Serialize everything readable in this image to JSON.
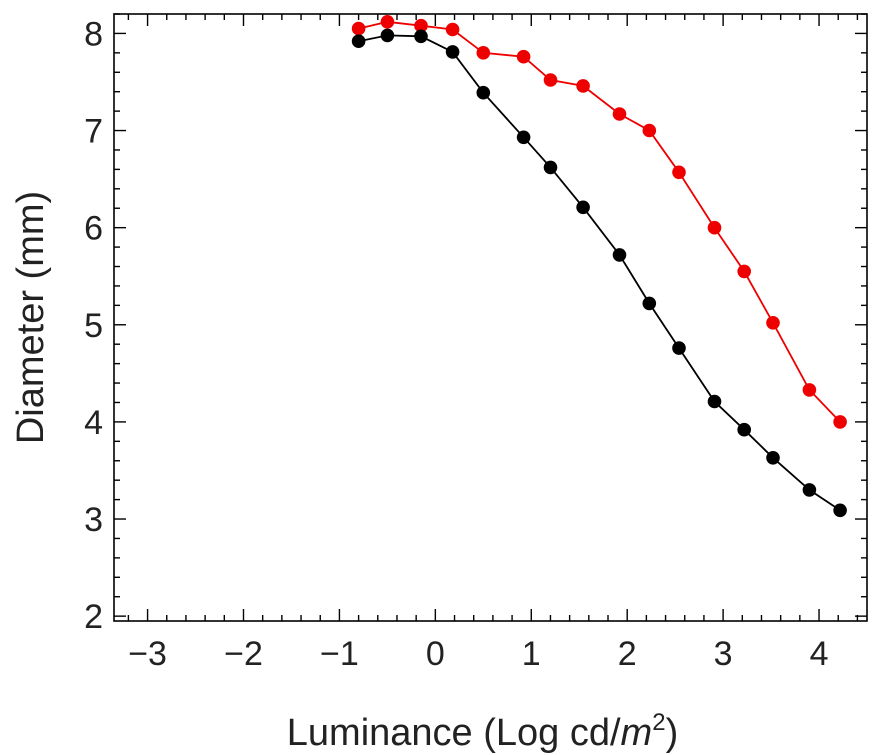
{
  "chart_data": {
    "type": "line",
    "title": "",
    "xlabel_parts": {
      "prefix": "Luminance (Log cd/",
      "italic": "m",
      "superscript": "2",
      "suffix": ")"
    },
    "ylabel": "Diameter (mm)",
    "xlim": [
      -3.35,
      4.5
    ],
    "ylim": [
      1.95,
      8.2
    ],
    "xticks": [
      -3,
      -2,
      -1,
      0,
      1,
      2,
      3,
      4
    ],
    "xtick_labels": [
      "−3",
      "−2",
      "−1",
      "0",
      "1",
      "2",
      "3",
      "4"
    ],
    "yticks": [
      2,
      3,
      4,
      5,
      6,
      7,
      8
    ],
    "ytick_labels": [
      "2",
      "3",
      "4",
      "5",
      "6",
      "7",
      "8"
    ],
    "grid": false,
    "legend": "none",
    "series": [
      {
        "color": "#ee0000",
        "x": [
          -0.8,
          -0.5,
          -0.15,
          0.18,
          0.5,
          0.92,
          1.2,
          1.54,
          1.92,
          2.23,
          2.54,
          2.91,
          3.22,
          3.52,
          3.9,
          4.22
        ],
        "y": [
          8.05,
          8.12,
          8.08,
          8.04,
          7.8,
          7.76,
          7.52,
          7.46,
          7.17,
          7.0,
          6.57,
          6.0,
          5.55,
          5.02,
          4.33,
          4.0
        ]
      },
      {
        "color": "#000000",
        "x": [
          -0.8,
          -0.5,
          -0.15,
          0.18,
          0.5,
          0.92,
          1.2,
          1.54,
          1.92,
          2.23,
          2.54,
          2.91,
          3.22,
          3.52,
          3.9,
          4.22
        ],
        "y": [
          7.92,
          7.98,
          7.97,
          7.81,
          7.39,
          6.93,
          6.62,
          6.21,
          5.72,
          5.22,
          4.76,
          4.21,
          3.92,
          3.63,
          3.3,
          3.09
        ]
      }
    ]
  }
}
